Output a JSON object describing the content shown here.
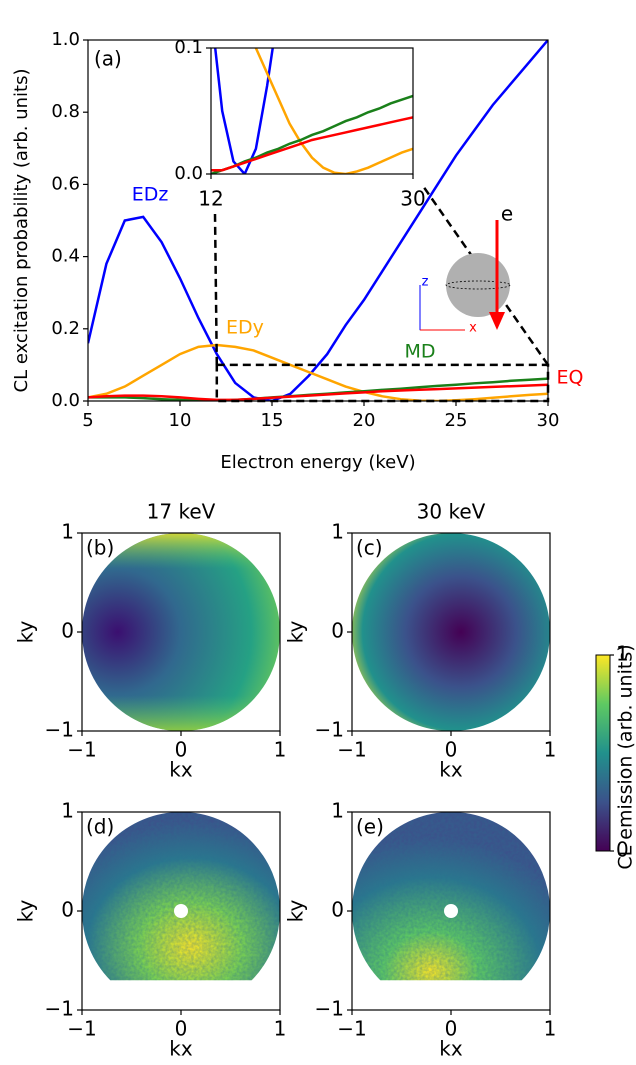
{
  "chart_data": [
    {
      "type": "line",
      "panel_label": "(a)",
      "xlabel": "Electron energy (keV)",
      "ylabel": "CL excitation probability (arb. units)",
      "x": [
        5,
        6,
        7,
        8,
        9,
        10,
        11,
        12,
        13,
        14,
        15,
        16,
        17,
        18,
        19,
        20,
        21,
        22,
        23,
        24,
        25,
        26,
        27,
        28,
        29,
        30
      ],
      "xlim": [
        5,
        30
      ],
      "ylim": [
        0,
        1
      ],
      "xticks": [
        5,
        10,
        15,
        20,
        25,
        30
      ],
      "yticks": [
        {
          "value": 0,
          "label": "0.0"
        },
        0.2,
        0.4,
        0.6,
        0.8,
        {
          "value": 1,
          "label": "1.0"
        }
      ],
      "series": [
        {
          "name": "EDz",
          "color": "#0000ff",
          "values": [
            0.16,
            0.38,
            0.5,
            0.51,
            0.44,
            0.34,
            0.23,
            0.13,
            0.05,
            0.01,
            0.0,
            0.02,
            0.07,
            0.13,
            0.21,
            0.28,
            0.36,
            0.44,
            0.52,
            0.6,
            0.68,
            0.75,
            0.82,
            0.88,
            0.94,
            1.0
          ]
        },
        {
          "name": "EDy",
          "color": "#ffa500",
          "values": [
            0.01,
            0.02,
            0.04,
            0.07,
            0.1,
            0.13,
            0.15,
            0.155,
            0.15,
            0.14,
            0.12,
            0.1,
            0.08,
            0.06,
            0.04,
            0.025,
            0.013,
            0.005,
            0.001,
            0.0,
            0.002,
            0.005,
            0.009,
            0.013,
            0.017,
            0.02
          ]
        },
        {
          "name": "MD",
          "color": "#1a801a",
          "values": [
            0.01,
            0.01,
            0.01,
            0.008,
            0.005,
            0.003,
            0.001,
            0.0,
            0.003,
            0.006,
            0.01,
            0.013,
            0.017,
            0.02,
            0.024,
            0.027,
            0.031,
            0.034,
            0.038,
            0.042,
            0.045,
            0.049,
            0.052,
            0.056,
            0.059,
            0.062
          ]
        },
        {
          "name": "EQ",
          "color": "#ff0000",
          "values": [
            0.01,
            0.013,
            0.015,
            0.015,
            0.013,
            0.01,
            0.006,
            0.003,
            0.003,
            0.006,
            0.009,
            0.012,
            0.015,
            0.018,
            0.021,
            0.024,
            0.027,
            0.029,
            0.031,
            0.033,
            0.035,
            0.037,
            0.039,
            0.041,
            0.043,
            0.045
          ]
        }
      ],
      "inset": {
        "xlim": [
          12,
          30
        ],
        "ylim": [
          0,
          0.1
        ],
        "xticks": [
          12,
          30
        ],
        "yticks": [
          {
            "value": 0,
            "label": "0.0"
          },
          0.1
        ]
      },
      "schematic": {
        "beam_label": "e",
        "z_label": "z",
        "x_label": "x"
      }
    },
    {
      "type": "heatmap",
      "titles": [
        "17 keV",
        "30 keV"
      ],
      "panels": [
        {
          "label": "(b)"
        },
        {
          "label": "(c)"
        },
        {
          "label": "(d)"
        },
        {
          "label": "(e)"
        }
      ],
      "xlabel": "kx",
      "ylabel": "ky",
      "xlim": [
        -1,
        1
      ],
      "ylim": [
        -1,
        1
      ],
      "xticks": [
        {
          "value": -1,
          "label": "−1"
        },
        0,
        1
      ],
      "yticks": [
        {
          "value": -1,
          "label": "−1"
        },
        0,
        1
      ],
      "colorbar": {
        "label": "CL emission (arb. units)",
        "lim": [
          0,
          1
        ],
        "ticks": [
          0,
          1
        ]
      }
    }
  ]
}
